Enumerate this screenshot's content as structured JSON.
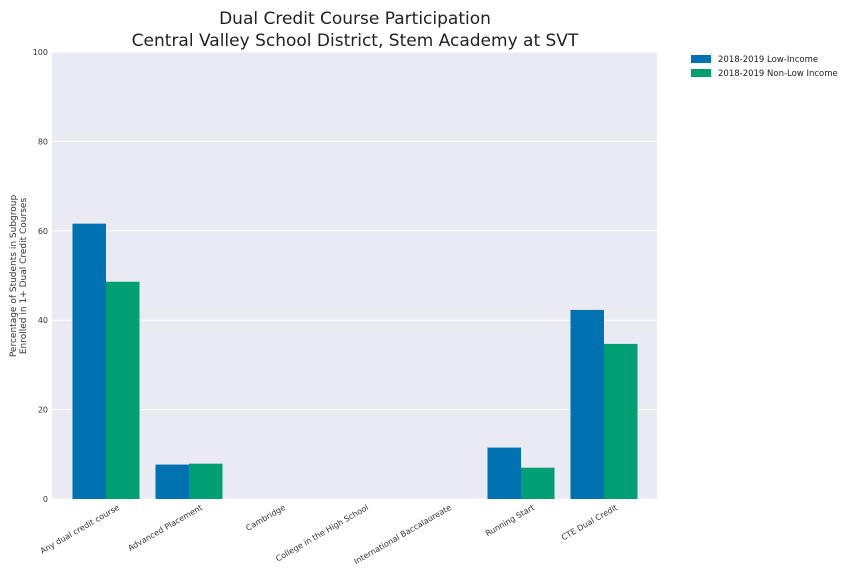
{
  "chart_data": {
    "type": "bar",
    "title_lines": [
      "Dual Credit Course Participation",
      "Central Valley School District, Stem Academy at SVT"
    ],
    "ylabel_lines": [
      "Percentage of Students in Subgroup",
      "Enrolled in 1+ Dual Credit Courses"
    ],
    "categories": [
      "Any dual credit course",
      "Advanced Placement",
      "Cambridge",
      "College in the High School",
      "International Baccalaureate",
      "Running Start",
      "CTE Dual Credit"
    ],
    "series": [
      {
        "name": "2018-2019 Low-Income",
        "color": "#0072b2",
        "values": [
          61.6,
          7.7,
          0,
          0,
          0,
          11.5,
          42.3
        ]
      },
      {
        "name": "2018-2019 Non-Low Income",
        "color": "#009e73",
        "values": [
          48.6,
          7.9,
          0,
          0,
          0,
          7.0,
          34.7
        ]
      }
    ],
    "ylim": [
      0,
      100
    ],
    "yticks": [
      0,
      20,
      40,
      60,
      80,
      100
    ],
    "grid": true,
    "legend_position": "outside-top-right",
    "plot_background": "#eaeaf2"
  }
}
